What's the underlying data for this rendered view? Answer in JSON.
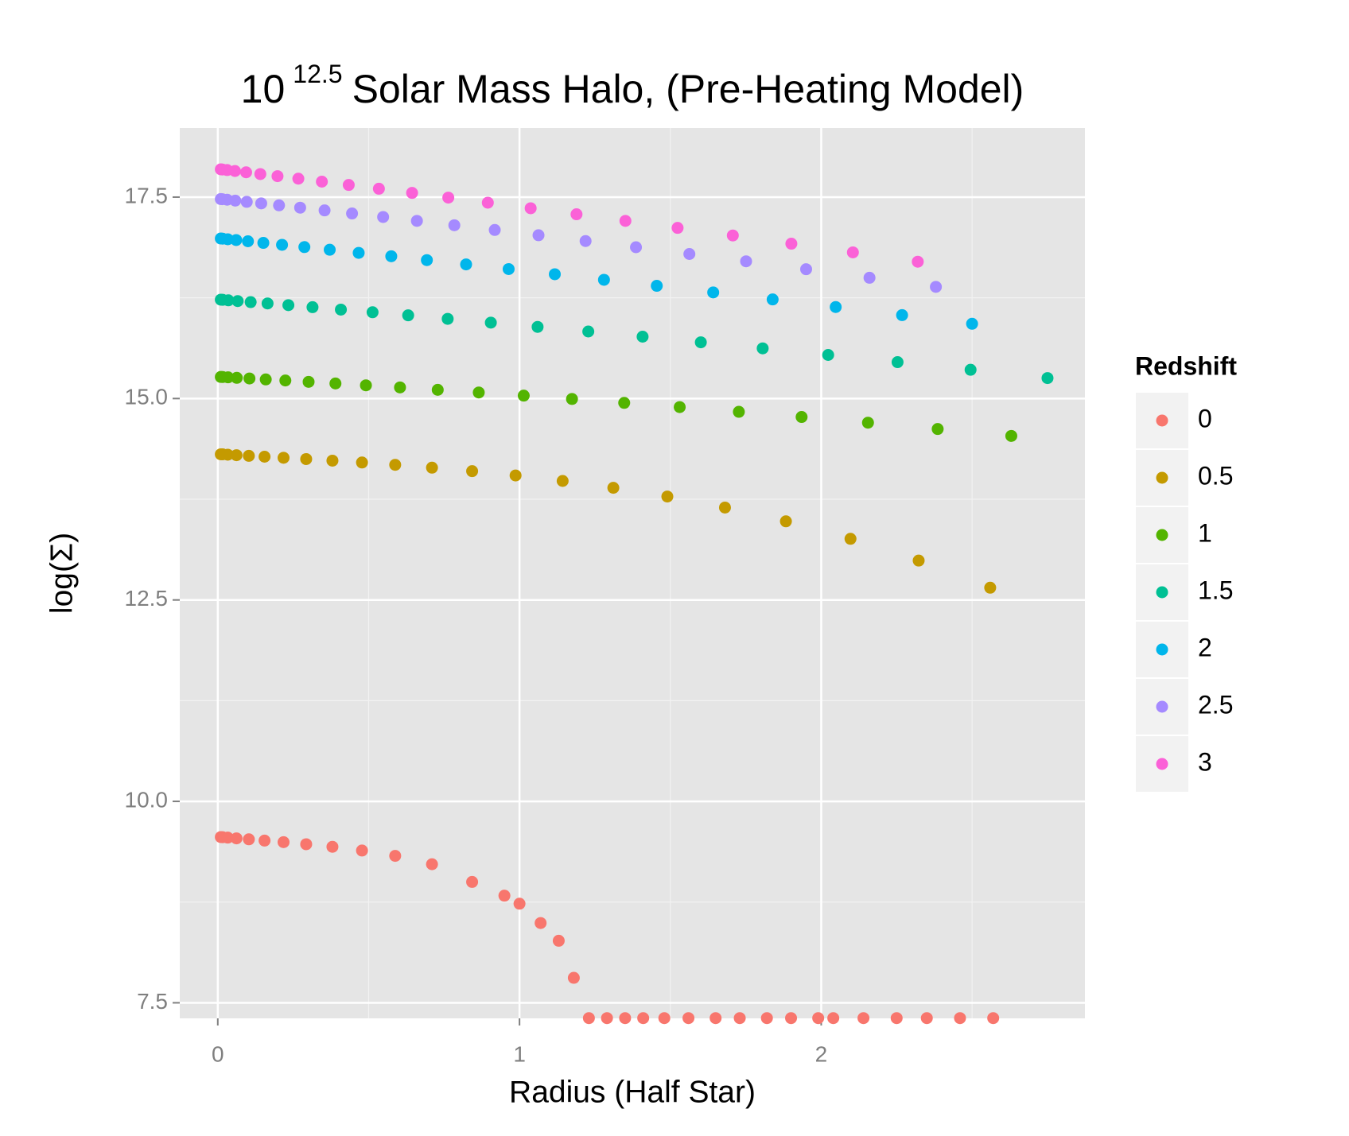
{
  "chart_data": {
    "type": "scatter",
    "title": {
      "base": "10",
      "exponent": "12.5",
      "text": "Solar Mass Halo, (Pre-Heating Model)"
    },
    "x_label": "Radius (Half Star)",
    "y_label": "log(Σ)",
    "legend_title": "Redshift",
    "legend_position": "right",
    "grid": true,
    "xlim": [
      -0.126,
      2.874
    ],
    "ylim": [
      7.307,
      18.358
    ],
    "xticks": [
      0,
      1,
      2
    ],
    "yticks": [
      7.5,
      {
        "value": 10,
        "label": "10.0"
      },
      12.5,
      {
        "value": 15,
        "label": "15.0"
      },
      17.5
    ],
    "x_minor_ticks": [
      0.5,
      1.5,
      2.5
    ],
    "y_minor_ticks": [
      8.75,
      11.25,
      13.75,
      16.25
    ],
    "series": [
      {
        "name": "0",
        "color": "#F8766D",
        "x": [
          0.01,
          0.016,
          0.033,
          0.062,
          0.103,
          0.155,
          0.218,
          0.293,
          0.38,
          0.478,
          0.588,
          0.71,
          0.843,
          0.95,
          1.0,
          1.07,
          1.13,
          1.18,
          1.23,
          1.29,
          1.35,
          1.41,
          1.48,
          1.56,
          1.65,
          1.73,
          1.82,
          1.9,
          1.99,
          2.04,
          2.14,
          2.25,
          2.35,
          2.46,
          2.57
        ],
        "values": [
          9.557,
          9.555,
          9.55,
          9.541,
          9.529,
          9.513,
          9.494,
          9.468,
          9.436,
          9.39,
          9.324,
          9.22,
          9.0,
          8.83,
          8.73,
          8.49,
          8.27,
          7.81,
          7.31,
          7.31,
          7.31,
          7.31,
          7.31,
          7.31,
          7.31,
          7.31,
          7.31,
          7.31,
          7.31,
          7.31,
          7.31,
          7.31,
          7.31,
          7.31,
          7.31
        ]
      },
      {
        "name": "0.5",
        "color": "#C49A00",
        "x": [
          0.01,
          0.016,
          0.033,
          0.062,
          0.103,
          0.155,
          0.218,
          0.293,
          0.38,
          0.478,
          0.588,
          0.71,
          0.843,
          0.987,
          1.143,
          1.311,
          1.49,
          1.681,
          1.883,
          2.097,
          2.323,
          2.56
        ],
        "values": [
          14.308,
          14.307,
          14.303,
          14.297,
          14.289,
          14.278,
          14.265,
          14.249,
          14.229,
          14.206,
          14.177,
          14.142,
          14.099,
          14.045,
          13.977,
          13.892,
          13.784,
          13.647,
          13.476,
          13.259,
          12.989,
          12.652
        ]
      },
      {
        "name": "1",
        "color": "#53B400",
        "x": [
          0.01,
          0.016,
          0.034,
          0.063,
          0.105,
          0.159,
          0.224,
          0.301,
          0.39,
          0.491,
          0.604,
          0.729,
          0.865,
          1.014,
          1.174,
          1.347,
          1.531,
          1.727,
          1.935,
          2.155,
          2.386,
          2.63
        ],
        "values": [
          15.268,
          15.267,
          15.263,
          15.257,
          15.249,
          15.237,
          15.224,
          15.207,
          15.187,
          15.164,
          15.138,
          15.108,
          15.075,
          15.036,
          14.994,
          14.946,
          14.894,
          14.835,
          14.771,
          14.7,
          14.622,
          14.536
        ]
      },
      {
        "name": "1.5",
        "color": "#00C094",
        "x": [
          0.01,
          0.016,
          0.035,
          0.066,
          0.109,
          0.165,
          0.234,
          0.314,
          0.408,
          0.513,
          0.631,
          0.762,
          0.905,
          1.06,
          1.228,
          1.408,
          1.601,
          1.806,
          2.023,
          2.253,
          2.495,
          2.75
        ],
        "values": [
          16.227,
          16.225,
          16.219,
          16.21,
          16.197,
          16.18,
          16.159,
          16.134,
          16.104,
          16.071,
          16.033,
          15.989,
          15.942,
          15.889,
          15.832,
          15.768,
          15.698,
          15.623,
          15.541,
          15.452,
          15.357,
          15.254
        ]
      },
      {
        "name": "2",
        "color": "#00B6EB",
        "x": [
          0.01,
          0.016,
          0.033,
          0.061,
          0.1,
          0.151,
          0.213,
          0.287,
          0.371,
          0.467,
          0.575,
          0.693,
          0.823,
          0.964,
          1.117,
          1.28,
          1.455,
          1.642,
          1.839,
          2.048,
          2.268,
          2.5
        ],
        "values": [
          16.986,
          16.984,
          16.977,
          16.967,
          16.952,
          16.932,
          16.908,
          16.88,
          16.847,
          16.808,
          16.766,
          16.718,
          16.665,
          16.607,
          16.543,
          16.474,
          16.399,
          16.317,
          16.23,
          16.136,
          16.035,
          15.928
        ]
      },
      {
        "name": "2.5",
        "color": "#A58AFF",
        "x": [
          0.01,
          0.015,
          0.031,
          0.058,
          0.096,
          0.144,
          0.203,
          0.273,
          0.354,
          0.445,
          0.548,
          0.66,
          0.784,
          0.918,
          1.063,
          1.219,
          1.386,
          1.563,
          1.751,
          1.95,
          2.16,
          2.38
        ],
        "values": [
          17.476,
          17.474,
          17.468,
          17.457,
          17.441,
          17.422,
          17.398,
          17.369,
          17.335,
          17.297,
          17.253,
          17.205,
          17.151,
          17.092,
          17.027,
          16.955,
          16.878,
          16.794,
          16.703,
          16.605,
          16.499,
          16.386
        ]
      },
      {
        "name": "3",
        "color": "#FB61D7",
        "x": [
          0.01,
          0.015,
          0.031,
          0.057,
          0.094,
          0.141,
          0.198,
          0.267,
          0.345,
          0.434,
          0.534,
          0.644,
          0.764,
          0.895,
          1.037,
          1.189,
          1.351,
          1.524,
          1.707,
          1.901,
          2.105,
          2.32
        ],
        "values": [
          17.845,
          17.843,
          17.836,
          17.824,
          17.808,
          17.786,
          17.76,
          17.729,
          17.692,
          17.651,
          17.604,
          17.552,
          17.494,
          17.431,
          17.362,
          17.287,
          17.205,
          17.118,
          17.024,
          16.922,
          16.814,
          16.698
        ]
      }
    ]
  }
}
